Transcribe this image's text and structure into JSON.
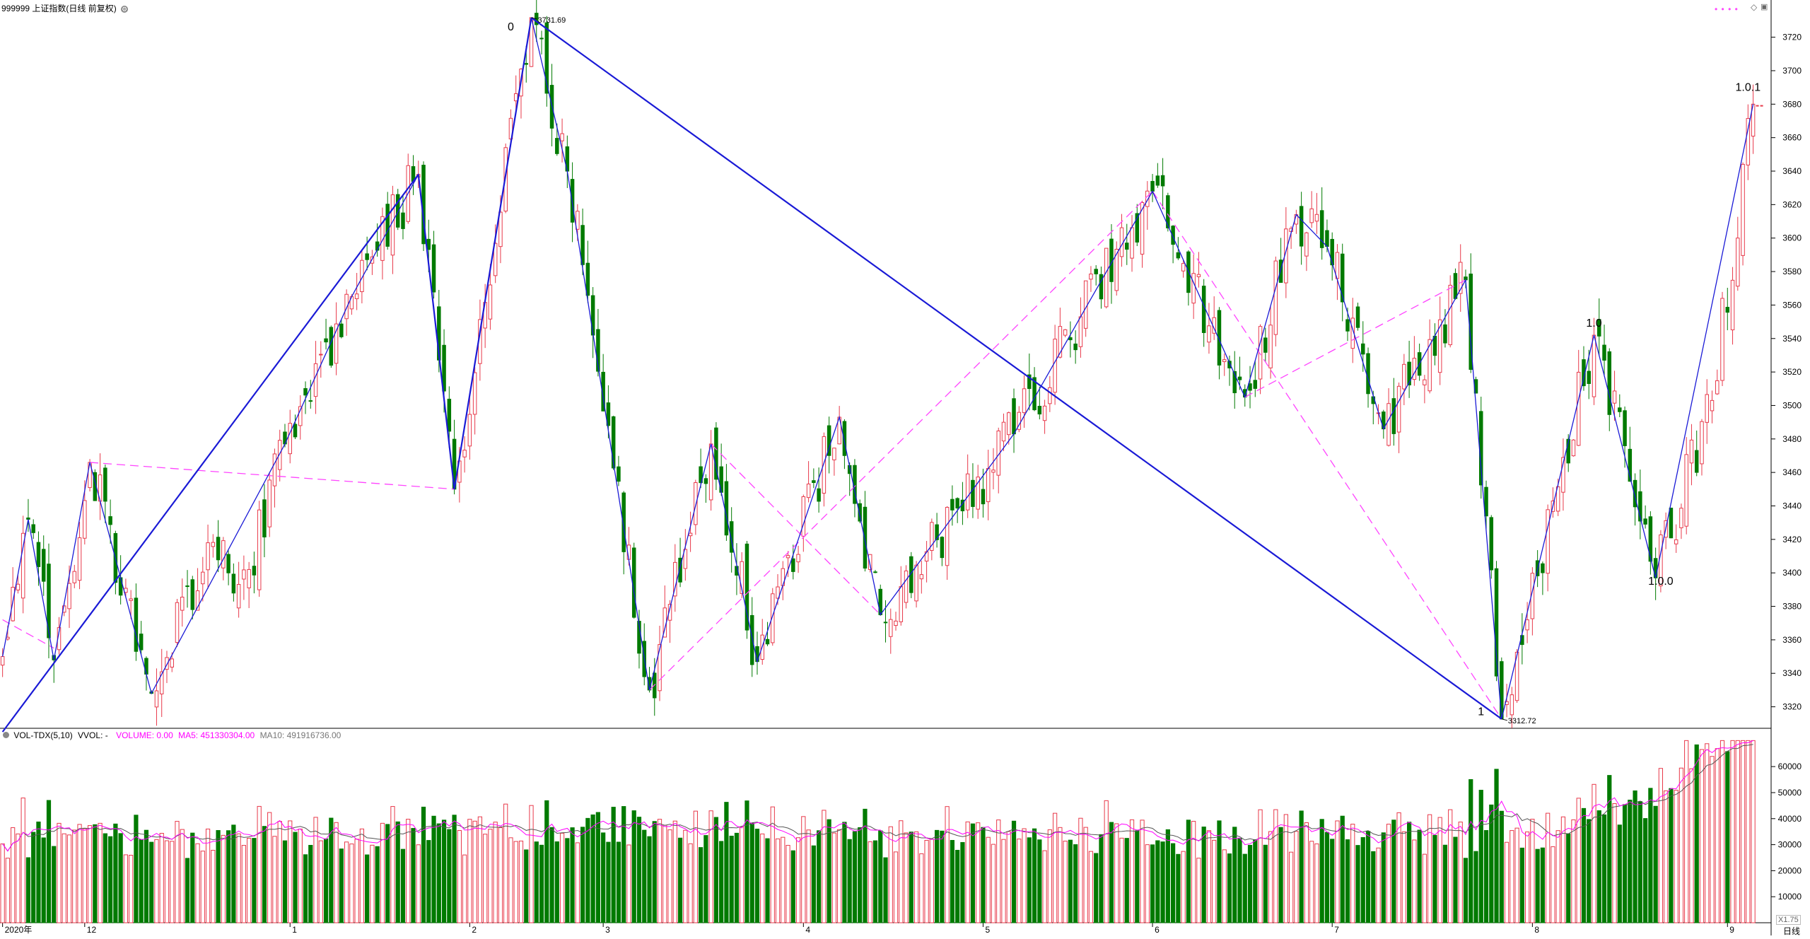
{
  "header": {
    "title": "999999 上证指数(日线 前复权)"
  },
  "volume_header": {
    "indicator": "VOL-TDX(5,10)",
    "vvol": "VVOL: -",
    "volume": "VOLUME: 0.00",
    "ma5": "MA5: 451330304.00",
    "ma10": "MA10: 491916736.00"
  },
  "corner": {
    "period_label": "日线",
    "scale_label": "X1.75"
  },
  "colors": {
    "up": "#e8394a",
    "down": "#007a00",
    "wave": "#1a1ad6",
    "dashed": "#ff44ff",
    "ma5": "#ff00ff",
    "ma10": "#555555",
    "axis": "#000000"
  },
  "chart_data": [
    {
      "type": "candlestick",
      "title": "999999 上证指数(日线 前复权)",
      "ylim": [
        3308,
        3738
      ],
      "yticks": [
        3320,
        3340,
        3360,
        3380,
        3400,
        3420,
        3440,
        3460,
        3480,
        3500,
        3520,
        3540,
        3560,
        3580,
        3600,
        3620,
        3640,
        3660,
        3680,
        3700,
        3720
      ],
      "x_month_labels": [
        {
          "label": "2020年",
          "index": 0
        },
        {
          "label": "12",
          "index": 16
        },
        {
          "label": "1",
          "index": 56
        },
        {
          "label": "2",
          "index": 91
        },
        {
          "label": "3",
          "index": 117
        },
        {
          "label": "4",
          "index": 156
        },
        {
          "label": "5",
          "index": 191
        },
        {
          "label": "6",
          "index": 224
        },
        {
          "label": "7",
          "index": 259
        },
        {
          "label": "8",
          "index": 298
        },
        {
          "label": "9",
          "index": 336
        }
      ],
      "high_annotation": {
        "label": "3731.69",
        "index": 103,
        "value": 3731.69
      },
      "low_annotation": {
        "label": "3312.72",
        "index": 292,
        "value": 3312.72
      },
      "wave_labels": [
        {
          "label": "0",
          "index": 99,
          "value": 3724
        },
        {
          "label": "1",
          "index": 288,
          "value": 3315
        },
        {
          "label": "1.0",
          "index": 310,
          "value": 3547
        },
        {
          "label": "1.0.0",
          "index": 323,
          "value": 3393
        },
        {
          "label": "1.0.1",
          "index": 340,
          "value": 3688
        }
      ],
      "pivots": [
        [
          0,
          3350
        ],
        [
          5,
          3432
        ],
        [
          10,
          3348
        ],
        [
          17,
          3466
        ],
        [
          29,
          3328
        ],
        [
          40,
          3418
        ],
        [
          44,
          3400
        ],
        [
          48,
          3402
        ],
        [
          55,
          3477
        ],
        [
          68,
          3565
        ],
        [
          81,
          3638
        ],
        [
          88,
          3450
        ],
        [
          103,
          3731.69
        ],
        [
          110,
          3640
        ],
        [
          126,
          3330
        ],
        [
          138,
          3477
        ],
        [
          147,
          3347
        ],
        [
          163,
          3493
        ],
        [
          171,
          3375
        ],
        [
          197,
          3483
        ],
        [
          210,
          3553
        ],
        [
          224,
          3628
        ],
        [
          242,
          3505
        ],
        [
          252,
          3614
        ],
        [
          258,
          3595
        ],
        [
          269,
          3486
        ],
        [
          285,
          3575
        ],
        [
          292,
          3312.72
        ],
        [
          310,
          3542
        ],
        [
          322,
          3397
        ],
        [
          333,
          3503
        ],
        [
          341,
          3680
        ]
      ],
      "main_wave_lines": [
        {
          "from": [
            0,
            3305
          ],
          "to": [
            81,
            3638
          ]
        },
        {
          "from": [
            81,
            3638
          ],
          "to": [
            88,
            3450
          ]
        },
        {
          "from": [
            88,
            3450
          ],
          "to": [
            103,
            3731.69
          ]
        },
        {
          "from": [
            103,
            3731.69
          ],
          "to": [
            292,
            3312.72
          ]
        }
      ],
      "sub_wave_path": [
        [
          0,
          3350
        ],
        [
          5,
          3432
        ],
        [
          10,
          3348
        ],
        [
          17,
          3466
        ],
        [
          29,
          3328
        ],
        [
          55,
          3477
        ],
        [
          68,
          3565
        ],
        [
          81,
          3638
        ],
        [
          88,
          3450
        ],
        [
          103,
          3731.69
        ],
        [
          110,
          3640
        ],
        [
          126,
          3330
        ],
        [
          138,
          3477
        ],
        [
          147,
          3347
        ],
        [
          163,
          3493
        ],
        [
          171,
          3375
        ],
        [
          197,
          3483
        ],
        [
          210,
          3553
        ],
        [
          224,
          3628
        ],
        [
          242,
          3505
        ],
        [
          252,
          3614
        ],
        [
          258,
          3595
        ],
        [
          269,
          3486
        ],
        [
          285,
          3575
        ],
        [
          292,
          3312.72
        ],
        [
          310,
          3542
        ],
        [
          322,
          3397
        ],
        [
          341,
          3680
        ]
      ],
      "dashed_lines": [
        {
          "from": [
            17,
            3466
          ],
          "to": [
            88,
            3450
          ]
        },
        {
          "from": [
            0,
            3372
          ],
          "to": [
            10,
            3355
          ]
        },
        {
          "from": [
            126,
            3330
          ],
          "to": [
            224,
            3628
          ]
        },
        {
          "from": [
            138,
            3477
          ],
          "to": [
            171,
            3375
          ]
        },
        {
          "from": [
            224,
            3628
          ],
          "to": [
            292,
            3312.72
          ]
        },
        {
          "from": [
            242,
            3505
          ],
          "to": [
            285,
            3575
          ]
        }
      ],
      "last_price_marker": {
        "index": 341,
        "value": 3679
      },
      "legend_marker": "• • • •"
    },
    {
      "type": "bar",
      "title": "VOL-TDX(5,10)",
      "ylim": [
        0,
        72000
      ],
      "yticks": [
        10000,
        20000,
        30000,
        40000,
        50000,
        60000
      ],
      "series": [
        {
          "name": "VOLUME",
          "values_source": "volume bars per day (see script)"
        },
        {
          "name": "MA5",
          "value": 451330304.0
        },
        {
          "name": "MA10",
          "value": 491916736.0
        }
      ]
    }
  ]
}
